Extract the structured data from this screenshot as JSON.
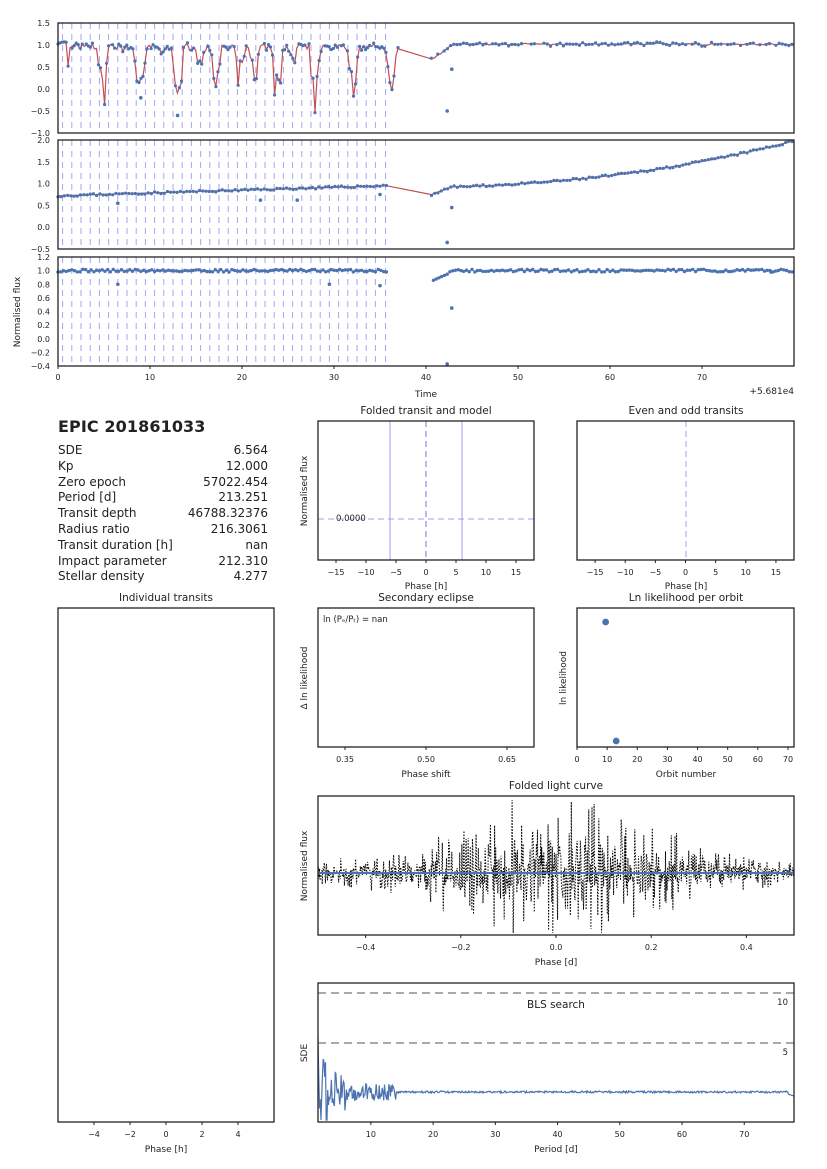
{
  "info": {
    "title": "EPIC 201861033",
    "rows": [
      {
        "label": "SDE",
        "value": "6.564"
      },
      {
        "label": "Kp",
        "value": "12.000"
      },
      {
        "label": "Zero epoch",
        "value": "57022.454"
      },
      {
        "label": "Period [d]",
        "value": "213.251"
      },
      {
        "label": "Transit depth",
        "value": "46788.32376"
      },
      {
        "label": "Radius ratio",
        "value": "216.3061"
      },
      {
        "label": "Transit duration [h]",
        "value": "nan"
      },
      {
        "label": "Impact parameter",
        "value": "212.310"
      },
      {
        "label": "Stellar density",
        "value": "4.277"
      }
    ]
  },
  "colors": {
    "data": "#4c72b0",
    "model": "#c44e52",
    "marker": "#8888ee",
    "frame": "#222222",
    "dash": "#777777"
  },
  "chart_data": [
    {
      "type": "scatter",
      "panel": "raw",
      "ylim": [
        -1.0,
        1.5
      ],
      "xlim": [
        0,
        80
      ],
      "yticks": [
        "1.5",
        "1.0",
        "0.5",
        "0.0",
        "−0.5",
        "−1.0"
      ],
      "series": [
        {
          "name": "",
          "values": []
        }
      ],
      "note": ""
    },
    {
      "type": "scatter",
      "panel": "trend",
      "ylim": [
        -0.5,
        2.0
      ],
      "xlim": [
        0,
        80
      ],
      "yticks": [
        "2.0",
        "1.5",
        "1.0",
        "0.5",
        "0.0",
        "−0.5"
      ]
    },
    {
      "type": "scatter",
      "panel": "detrended",
      "ylim": [
        -0.4,
        1.2
      ],
      "xlim": [
        0,
        80
      ],
      "yticks": [
        "1.2",
        "1.0",
        "0.8",
        "0.6",
        "0.4",
        "0.2",
        "0.0",
        "−0.2",
        "−0.4"
      ],
      "xticks": [
        "0",
        "10",
        "20",
        "30",
        "40",
        "50",
        "60",
        "70"
      ],
      "xlabel": "Time",
      "ylabel": "Normalised flux",
      "offset": "+5.681e4",
      "transit_times": [
        0.5,
        1.5,
        2.5,
        3.5,
        4.5,
        5.5,
        6.5,
        7.5,
        8.5,
        9.5,
        10.5,
        11.5,
        12.5,
        13.5,
        14.5,
        15.5,
        16.5,
        17.5,
        18.5,
        19.5,
        20.5,
        21.5,
        22.5,
        23.5,
        24.5,
        25.5,
        26.5,
        27.5,
        28.5,
        29.5,
        30.5,
        31.5,
        32.5,
        33.5,
        34.5,
        35.6
      ]
    },
    {
      "type": "line",
      "panel": "folded-transit",
      "title": "Folded transit and model",
      "xlabel": "Phase [h]",
      "ylabel": "Normalised flux",
      "xlim": [
        -18,
        18
      ],
      "xticks": [
        "−15",
        "−10",
        "−5",
        "0",
        "5",
        "10",
        "15"
      ],
      "annotation": "0.0000",
      "duration_lines": [
        -6,
        6
      ]
    },
    {
      "type": "line",
      "panel": "even-odd",
      "title": "Even and odd transits",
      "xlabel": "Phase [h]",
      "xlim": [
        -18,
        18
      ],
      "xticks": [
        "−15",
        "−10",
        "−5",
        "0",
        "5",
        "10",
        "15"
      ]
    },
    {
      "type": "line",
      "panel": "individual",
      "title": "Individual transits",
      "xlabel": "Phase [h]",
      "xlim": [
        -6,
        6
      ],
      "xticks": [
        "−4",
        "−2",
        "0",
        "2",
        "4"
      ]
    },
    {
      "type": "line",
      "panel": "secondary",
      "title": "Secondary eclipse",
      "xlabel": "Phase shift",
      "ylabel": "Δ ln likelihood",
      "xlim": [
        0.3,
        0.7
      ],
      "xticks": [
        "0.35",
        "0.50",
        "0.65"
      ],
      "annotation": "ln (Pₑ/Pₜ) = nan"
    },
    {
      "type": "scatter",
      "panel": "lnlike",
      "title": "Ln likelihood per orbit",
      "xlabel": "Orbit number",
      "ylabel": "ln likelihood",
      "xlim": [
        0,
        72
      ],
      "xticks": [
        "0",
        "10",
        "20",
        "30",
        "40",
        "50",
        "60",
        "70"
      ],
      "points": [
        {
          "x": 9.5,
          "y": 1.0
        },
        {
          "x": 13,
          "y": 0.0
        }
      ]
    },
    {
      "type": "line",
      "panel": "folded-lc",
      "title": "Folded light curve",
      "xlabel": "Phase [d]",
      "ylabel": "Normalised flux",
      "xlim": [
        -0.5,
        0.5
      ],
      "xticks": [
        "−0.4",
        "−0.2",
        "0.0",
        "0.2",
        "0.4"
      ]
    },
    {
      "type": "line",
      "panel": "bls",
      "title": "BLS search",
      "xlabel": "Period [d]",
      "ylabel": "SDE",
      "xlim": [
        0,
        78
      ],
      "xticks": [
        "10",
        "20",
        "30",
        "40",
        "50",
        "60",
        "70"
      ],
      "threshold_labels": [
        "10",
        "5"
      ]
    }
  ]
}
